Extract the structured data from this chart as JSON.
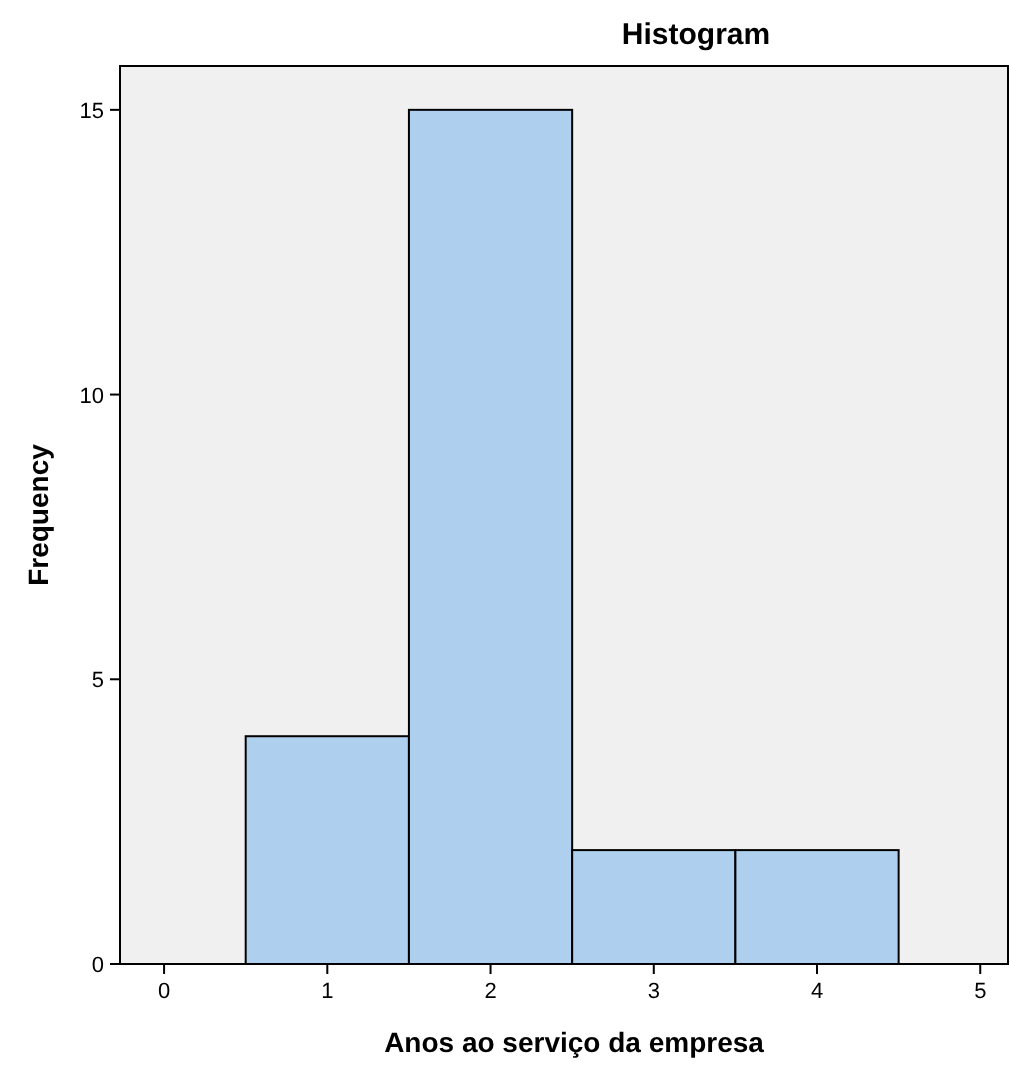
{
  "chart_data": {
    "type": "histogram",
    "title": "Histogram",
    "xlabel": "Anos ao serviço da empresa",
    "ylabel": "Frequency",
    "bins": [
      0.5,
      1.5,
      2.5,
      3.5,
      4.5
    ],
    "values": [
      4,
      15,
      2,
      2
    ],
    "color": "#aed0ee",
    "xlim": [
      -0.27,
      5.17
    ],
    "xticks": [
      0,
      1,
      2,
      3,
      4,
      5
    ],
    "ylim": [
      0,
      15.77
    ],
    "yticks": [
      0,
      5,
      10,
      15
    ],
    "grid": false
  }
}
